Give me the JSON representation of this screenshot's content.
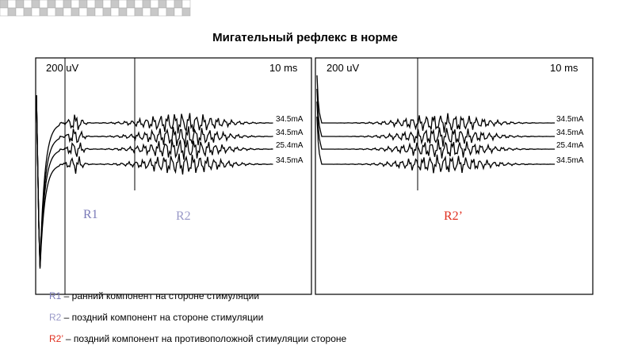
{
  "header": {
    "title": "Мигательный рефлекс в норме"
  },
  "panels": [
    {
      "amplitude": "200 uV",
      "time": "10 ms",
      "traces": [
        "34.5mA",
        "34.5mA",
        "25.4mA",
        "34.5mA"
      ]
    },
    {
      "amplitude": "200 uV",
      "time": "10 ms",
      "traces": [
        "34.5mA",
        "34.5mA",
        "25.4mA",
        "34.5mA"
      ]
    }
  ],
  "markers": {
    "r1": "R1",
    "r2": "R2",
    "r2prime": "R2’"
  },
  "legend": [
    {
      "key": "R1",
      "text": " – ранний компонент на стороне стимуляции"
    },
    {
      "key": "R2",
      "text": " – поздний компонент на стороне стимуляции"
    },
    {
      "key": "R2’",
      "text": " – поздний компонент на противоположной стимуляции стороне"
    }
  ]
}
